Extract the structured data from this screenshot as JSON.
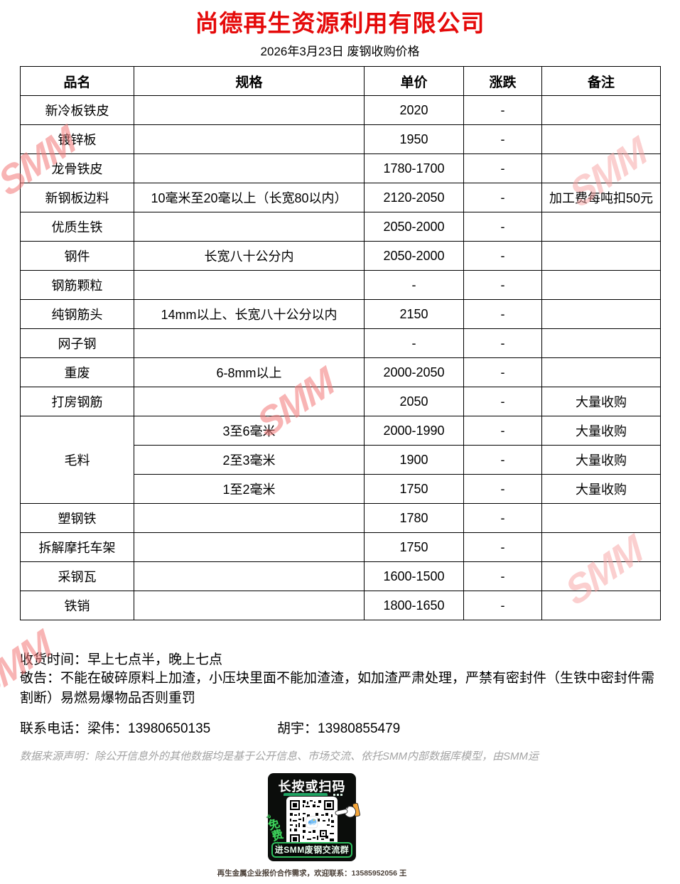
{
  "header": {
    "company": "尚德再生资源利用有限公司",
    "date_line": "2026年3月23日 废钢收购价格"
  },
  "colors": {
    "title_red": "#e50a0a",
    "watermark_pink": "#f37676",
    "qr_green": "#2fbf5f",
    "qr_card_bg": "#0b0d0b"
  },
  "watermark_text": "SMM",
  "table": {
    "headers": [
      "品名",
      "规格",
      "单价",
      "涨跌",
      "备注"
    ],
    "rows": [
      {
        "name": "新冷板铁皮",
        "spec": "",
        "price": "2020",
        "change": "-",
        "note": ""
      },
      {
        "name": "镀锌板",
        "spec": "",
        "price": "1950",
        "change": "-",
        "note": ""
      },
      {
        "name": "龙骨铁皮",
        "spec": "",
        "price": "1780-1700",
        "change": "-",
        "note": ""
      },
      {
        "name": "新钢板边料",
        "spec": "10毫米至20毫以上（长宽80以内）",
        "price": "2120-2050",
        "change": "-",
        "note": "加工费每吨扣50元"
      },
      {
        "name": "优质生铁",
        "spec": "",
        "price": "2050-2000",
        "change": "-",
        "note": ""
      },
      {
        "name": "钢件",
        "spec": "长宽八十公分内",
        "price": "2050-2000",
        "change": "-",
        "note": ""
      },
      {
        "name": "钢筋颗粒",
        "spec": "",
        "price": "-",
        "change": "-",
        "note": ""
      },
      {
        "name": "纯钢筋头",
        "spec": "14mm以上、长宽八十公分以内",
        "price": "2150",
        "change": "-",
        "note": ""
      },
      {
        "name": "网子钢",
        "spec": "",
        "price": "-",
        "change": "-",
        "note": ""
      },
      {
        "name": "重废",
        "spec": "6-8mm以上",
        "price": "2000-2050",
        "change": "-",
        "note": ""
      },
      {
        "name": "打房钢筋",
        "spec": "",
        "price": "2050",
        "change": "-",
        "note": "大量收购"
      },
      {
        "name": "毛料",
        "rowspan": 3,
        "spec": "3至6毫米",
        "price": "2000-1990",
        "change": "-",
        "note": "大量收购"
      },
      {
        "name": null,
        "spec": "2至3毫米",
        "price": "1900",
        "change": "-",
        "note": "大量收购"
      },
      {
        "name": null,
        "spec": "1至2毫米",
        "price": "1750",
        "change": "-",
        "note": "大量收购"
      },
      {
        "name": "塑钢铁",
        "spec": "",
        "price": "1780",
        "change": "-",
        "note": ""
      },
      {
        "name": "拆解摩托车架",
        "spec": "",
        "price": "1750",
        "change": "-",
        "note": ""
      },
      {
        "name": "采钢瓦",
        "spec": "",
        "price": "1600-1500",
        "change": "-",
        "note": ""
      },
      {
        "name": "铁销",
        "spec": "",
        "price": "1800-1650",
        "change": "-",
        "note": ""
      }
    ]
  },
  "footer": {
    "pickup_time": "收货时间：早上七点半，晚上七点",
    "warning": "敬告：不能在破碎原料上加渣，小压块里面不能加渣渣，如加渣严肃处理，严禁有密封件（生铁中密封件需割断）易燃易爆物品否则重罚",
    "contact_primary": "联系电话：梁伟：13980650135",
    "contact_secondary": "胡宇：13980855479",
    "disclaimer": "数据来源声明：除公开信息外的其他数据均是基于公开信息、市场交流、依托SMM内部数据库模型，由SMM运"
  },
  "qr_card": {
    "heading": "长按或扫码",
    "free_label": "免费",
    "free_chevron": "»",
    "free_arrow": "↓",
    "button_label": "进SMM废钢交流群",
    "caption": "再生金属企业报价合作需求，欢迎联系：13585952056 王"
  }
}
